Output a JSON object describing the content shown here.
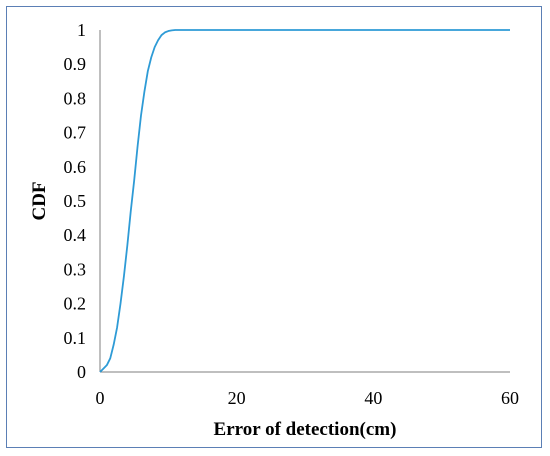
{
  "chart_data": {
    "type": "line",
    "title": "",
    "xlabel": "Error of detection(cm)",
    "ylabel": "CDF",
    "xlim": [
      0,
      60
    ],
    "ylim": [
      0,
      1
    ],
    "x_ticks": [
      0,
      20,
      40,
      60
    ],
    "y_ticks": [
      0,
      0.1,
      0.2,
      0.3,
      0.4,
      0.5,
      0.6,
      0.7,
      0.8,
      0.9,
      1
    ],
    "x_tick_labels": [
      "0",
      "20",
      "40",
      "60"
    ],
    "y_tick_labels": [
      "0",
      "0.1",
      "0.2",
      "0.3",
      "0.4",
      "0.5",
      "0.6",
      "0.7",
      "0.8",
      "0.9",
      "1"
    ],
    "grid": false,
    "legend": "none",
    "series": [
      {
        "color": "#2e9bd6",
        "x": [
          0,
          0.5,
          1,
          1.5,
          2,
          2.5,
          3,
          3.5,
          4,
          4.5,
          5,
          5.5,
          6,
          6.5,
          7,
          7.5,
          8,
          8.5,
          9,
          9.5,
          10,
          10.5,
          11,
          12,
          13,
          15,
          20,
          30,
          40,
          50,
          60
        ],
        "y": [
          0,
          0.01,
          0.02,
          0.04,
          0.08,
          0.13,
          0.2,
          0.28,
          0.37,
          0.47,
          0.56,
          0.66,
          0.75,
          0.82,
          0.88,
          0.92,
          0.95,
          0.97,
          0.985,
          0.993,
          0.997,
          0.999,
          1,
          1,
          1,
          1,
          1,
          1,
          1,
          1,
          1
        ]
      }
    ]
  }
}
